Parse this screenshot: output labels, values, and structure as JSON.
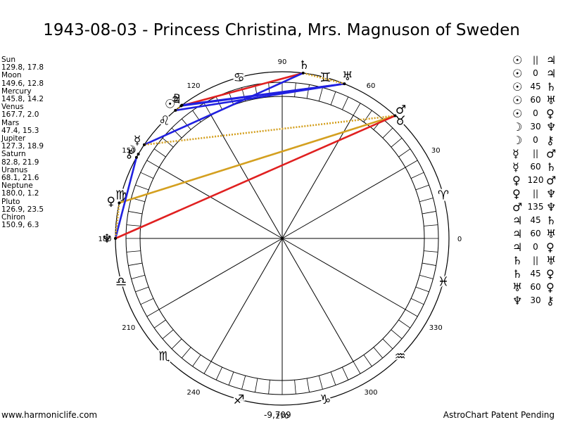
{
  "title": "1943-08-03 - Princess Christina, Mrs. Magnuson of Sweden",
  "planets": [
    {
      "name": "Sun",
      "values": "129.8, 17.8"
    },
    {
      "name": "Moon",
      "values": "149.6, 12.8"
    },
    {
      "name": "Mercury",
      "values": "145.8, 14.2"
    },
    {
      "name": "Venus",
      "values": "167.7, 2.0"
    },
    {
      "name": "Mars",
      "values": "47.4, 15.3"
    },
    {
      "name": "Jupiter",
      "values": "127.3, 18.9"
    },
    {
      "name": "Saturn",
      "values": "82.8, 21.9"
    },
    {
      "name": "Uranus",
      "values": "68.1, 21.6"
    },
    {
      "name": "Neptune",
      "values": "180.0, 1.2"
    },
    {
      "name": "Pluto",
      "values": "126.9, 23.5"
    },
    {
      "name": "Chiron",
      "values": "150.9, 6.3"
    }
  ],
  "aspects": [
    {
      "g1": "☉",
      "a": "||",
      "g2": "♃"
    },
    {
      "g1": "☉",
      "a": "0",
      "g2": "♃"
    },
    {
      "g1": "☉",
      "a": "45",
      "g2": "♄"
    },
    {
      "g1": "☉",
      "a": "60",
      "g2": "♅"
    },
    {
      "g1": "☉",
      "a": "0",
      "g2": "♀"
    },
    {
      "g1": "☽",
      "a": "30",
      "g2": "♆"
    },
    {
      "g1": "☽",
      "a": "0",
      "g2": "⚷"
    },
    {
      "g1": "☿",
      "a": "||",
      "g2": "♂"
    },
    {
      "g1": "☿",
      "a": "60",
      "g2": "♄"
    },
    {
      "g1": "♀",
      "a": "120",
      "g2": "♂"
    },
    {
      "g1": "♀",
      "a": "||",
      "g2": "♆"
    },
    {
      "g1": "♂",
      "a": "135",
      "g2": "♆"
    },
    {
      "g1": "♃",
      "a": "45",
      "g2": "♄"
    },
    {
      "g1": "♃",
      "a": "60",
      "g2": "♅"
    },
    {
      "g1": "♃",
      "a": "0",
      "g2": "♀"
    },
    {
      "g1": "♄",
      "a": "||",
      "g2": "♅"
    },
    {
      "g1": "♄",
      "a": "45",
      "g2": "♀"
    },
    {
      "g1": "♅",
      "a": "60",
      "g2": "♀"
    },
    {
      "g1": "♆",
      "a": "30",
      "g2": "⚷"
    }
  ],
  "footer": {
    "left": "www.harmoniclife.com",
    "center": "-9,709",
    "right": "AstroChart Patent Pending"
  },
  "chart_data": {
    "type": "scatter",
    "degree_labels": [
      0,
      30,
      60,
      90,
      120,
      150,
      180,
      210,
      240,
      270,
      300,
      330
    ],
    "sign_glyphs": [
      "♈",
      "♉",
      "♊",
      "♋",
      "♌",
      "♍",
      "♎",
      "♏",
      "♐",
      "♑",
      "♒",
      "♓"
    ],
    "bodies": [
      {
        "glyph": "☉",
        "longitude": 129.8
      },
      {
        "glyph": "☽",
        "longitude": 149.6
      },
      {
        "glyph": "☿",
        "longitude": 145.8
      },
      {
        "glyph": "♀",
        "longitude": 167.7
      },
      {
        "glyph": "♂",
        "longitude": 47.4
      },
      {
        "glyph": "♃",
        "longitude": 127.3
      },
      {
        "glyph": "♄",
        "longitude": 82.8
      },
      {
        "glyph": "♅",
        "longitude": 68.1
      },
      {
        "glyph": "♆",
        "longitude": 180.0
      },
      {
        "glyph": "♇",
        "longitude": 126.9
      },
      {
        "glyph": "⚷",
        "longitude": 150.9
      }
    ],
    "aspect_lines": [
      {
        "from": 82.8,
        "to": 127.3,
        "color": "#e02020",
        "style": "solid"
      },
      {
        "from": 68.1,
        "to": 127.3,
        "color": "#2020e0",
        "style": "solid"
      },
      {
        "from": 68.1,
        "to": 129.8,
        "color": "#2020e0",
        "style": "solid"
      },
      {
        "from": 68.1,
        "to": 126.9,
        "color": "#2020e0",
        "style": "solid"
      },
      {
        "from": 82.8,
        "to": 145.8,
        "color": "#2020e0",
        "style": "solid"
      },
      {
        "from": 82.8,
        "to": 68.1,
        "color": "#d4a020",
        "style": "dotted"
      },
      {
        "from": 127.3,
        "to": 129.8,
        "color": "#d4a020",
        "style": "dotted"
      },
      {
        "from": 47.4,
        "to": 145.8,
        "color": "#d4a020",
        "style": "dotted"
      },
      {
        "from": 47.4,
        "to": 167.7,
        "color": "#d4a020",
        "style": "solid"
      },
      {
        "from": 47.4,
        "to": 180.0,
        "color": "#e02020",
        "style": "solid"
      },
      {
        "from": 150.9,
        "to": 180.0,
        "color": "#2020e0",
        "style": "solid"
      },
      {
        "from": 167.7,
        "to": 180.0,
        "color": "#d4a020",
        "style": "dotted"
      }
    ]
  }
}
